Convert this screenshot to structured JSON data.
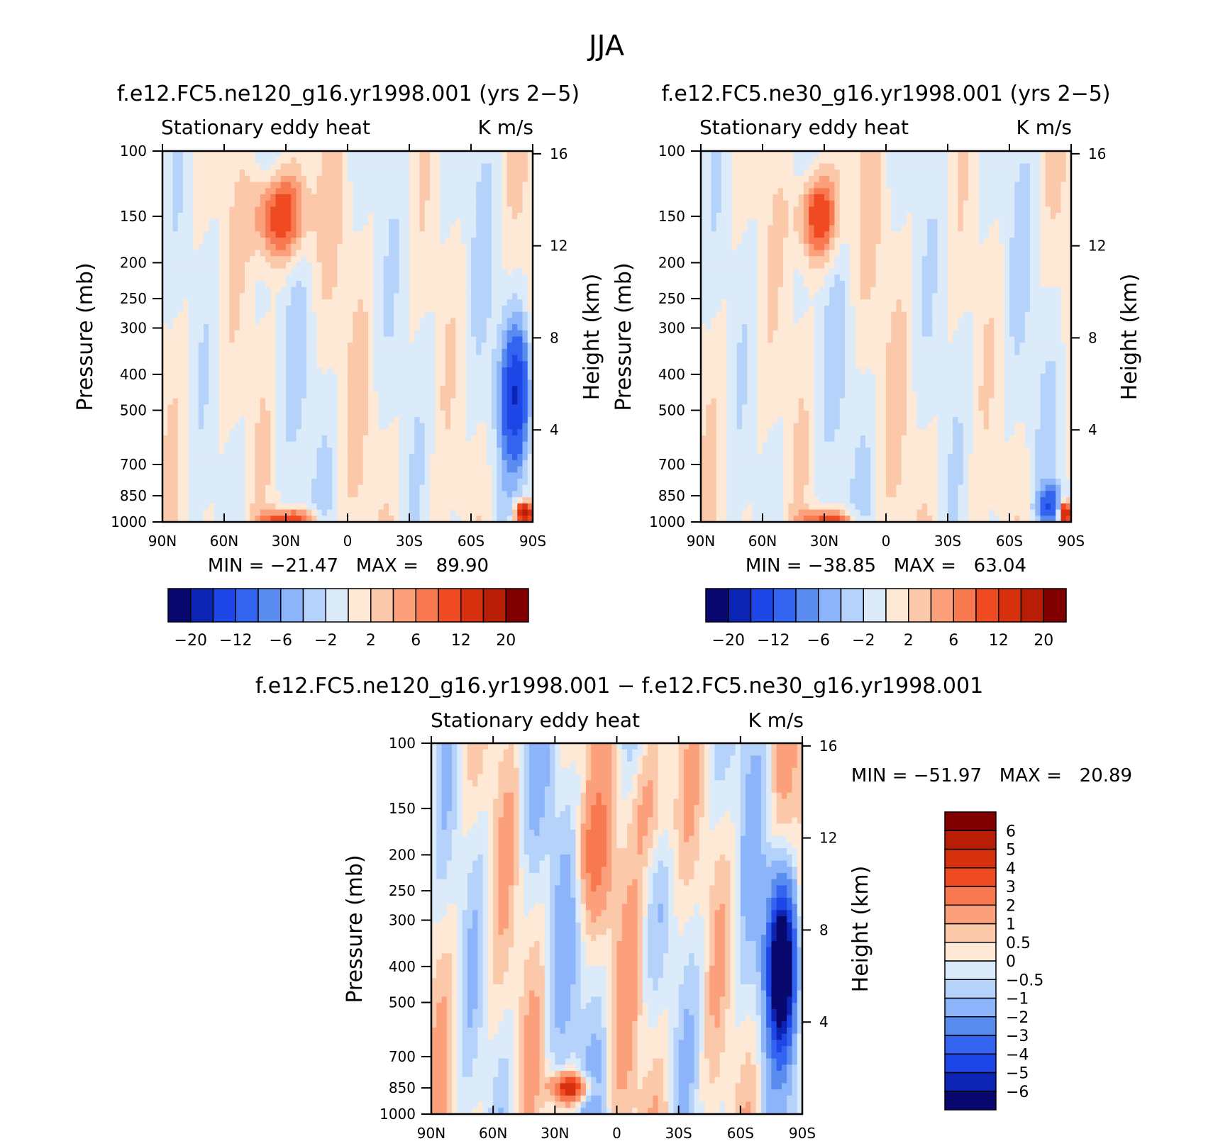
{
  "figure_title": "JJA",
  "colors": {
    "std_levels": [
      "#08086e",
      "#0c24b4",
      "#1e46e6",
      "#3264f0",
      "#5a8cf0",
      "#8cb4fa",
      "#b4d2fa",
      "#dcebfa",
      "#fee8d6",
      "#fcc8aa",
      "#fca07c",
      "#f87850",
      "#f04a22",
      "#d7300f",
      "#b81e06",
      "#800000"
    ],
    "diff_levels": [
      "#08086e",
      "#0c24b4",
      "#1e46e6",
      "#3264f0",
      "#5a8cf0",
      "#8cb4fa",
      "#b4d2fa",
      "#dcebfa",
      "#fee8d6",
      "#fcc8aa",
      "#fca07c",
      "#f87850",
      "#f04a22",
      "#d7300f",
      "#b81e06",
      "#800000"
    ]
  },
  "chart_data": [
    {
      "type": "heatmap",
      "title": "f.e12.FC5.ne120_g16.yr1998.001 (yrs 2−5)",
      "subtitle_left": "Stationary eddy heat",
      "subtitle_right": "K m/s",
      "xlabel": "",
      "ylabel": "Pressure (mb)",
      "ylabel_right": "Height (km)",
      "xticks": [
        {
          "v": 90,
          "label": "90N"
        },
        {
          "v": 60,
          "label": "60N"
        },
        {
          "v": 30,
          "label": "30N"
        },
        {
          "v": 0,
          "label": "0"
        },
        {
          "v": -30,
          "label": "30S"
        },
        {
          "v": -60,
          "label": "60S"
        },
        {
          "v": -90,
          "label": "90S"
        }
      ],
      "yticks": [
        {
          "v": 100,
          "label": "100"
        },
        {
          "v": 150,
          "label": "150"
        },
        {
          "v": 200,
          "label": "200"
        },
        {
          "v": 250,
          "label": "250"
        },
        {
          "v": 300,
          "label": "300"
        },
        {
          "v": 400,
          "label": "400"
        },
        {
          "v": 500,
          "label": "500"
        },
        {
          "v": 700,
          "label": "700"
        },
        {
          "v": 850,
          "label": "850"
        },
        {
          "v": 1000,
          "label": "1000"
        }
      ],
      "height_ticks": [
        {
          "v": 16,
          "label": "16"
        },
        {
          "v": 12,
          "label": "12"
        },
        {
          "v": 8,
          "label": "8"
        },
        {
          "v": 4,
          "label": "4"
        }
      ],
      "xlim": [
        90,
        -90
      ],
      "ylim": [
        1000,
        100
      ],
      "stats_text": "MIN = −21.47   MAX =   89.90",
      "colorbar_labels": [
        "−20",
        "−12",
        "−6",
        "−2",
        "2",
        "6",
        "12",
        "20"
      ],
      "features": [
        {
          "lat": 33,
          "p": 150,
          "value": 12,
          "wlat": 9,
          "wlogp": 0.2
        },
        {
          "lat": 28,
          "p": 1000,
          "value": 12,
          "wlat": 9,
          "wlogp": 0.05
        },
        {
          "lat": -82,
          "p": 450,
          "value": -14,
          "wlat": 5,
          "wlogp": 0.3
        },
        {
          "lat": -86,
          "p": 950,
          "value": 20,
          "wlat": 3,
          "wlogp": 0.05
        }
      ]
    },
    {
      "type": "heatmap",
      "title": "f.e12.FC5.ne30_g16.yr1998.001 (yrs 2−5)",
      "subtitle_left": "Stationary eddy heat",
      "subtitle_right": "K m/s",
      "xlabel": "",
      "ylabel": "Pressure (mb)",
      "ylabel_right": "Height (km)",
      "xticks": [
        {
          "v": 90,
          "label": "90N"
        },
        {
          "v": 60,
          "label": "60N"
        },
        {
          "v": 30,
          "label": "30N"
        },
        {
          "v": 0,
          "label": "0"
        },
        {
          "v": -30,
          "label": "30S"
        },
        {
          "v": -60,
          "label": "60S"
        },
        {
          "v": -90,
          "label": "90S"
        }
      ],
      "yticks": [
        {
          "v": 100,
          "label": "100"
        },
        {
          "v": 150,
          "label": "150"
        },
        {
          "v": 200,
          "label": "200"
        },
        {
          "v": 250,
          "label": "250"
        },
        {
          "v": 300,
          "label": "300"
        },
        {
          "v": 400,
          "label": "400"
        },
        {
          "v": 500,
          "label": "500"
        },
        {
          "v": 700,
          "label": "700"
        },
        {
          "v": 850,
          "label": "850"
        },
        {
          "v": 1000,
          "label": "1000"
        }
      ],
      "height_ticks": [
        {
          "v": 16,
          "label": "16"
        },
        {
          "v": 12,
          "label": "12"
        },
        {
          "v": 8,
          "label": "8"
        },
        {
          "v": 4,
          "label": "4"
        }
      ],
      "xlim": [
        90,
        -90
      ],
      "ylim": [
        1000,
        100
      ],
      "stats_text": "MIN = −38.85   MAX =   63.04",
      "colorbar_labels": [
        "−20",
        "−12",
        "−6",
        "−2",
        "2",
        "6",
        "12",
        "20"
      ],
      "features": [
        {
          "lat": 33,
          "p": 150,
          "value": 12,
          "wlat": 7,
          "wlogp": 0.2
        },
        {
          "lat": 28,
          "p": 1000,
          "value": 10,
          "wlat": 9,
          "wlogp": 0.05
        },
        {
          "lat": -80,
          "p": 900,
          "value": -10,
          "wlat": 4,
          "wlogp": 0.08
        },
        {
          "lat": -87,
          "p": 950,
          "value": 20,
          "wlat": 2,
          "wlogp": 0.05
        }
      ]
    },
    {
      "type": "heatmap",
      "title": "f.e12.FC5.ne120_g16.yr1998.001 − f.e12.FC5.ne30_g16.yr1998.001",
      "subtitle_left": "Stationary eddy heat",
      "subtitle_right": "K m/s",
      "xlabel": "",
      "ylabel": "Pressure (mb)",
      "ylabel_right": "Height (km)",
      "xticks": [
        {
          "v": 90,
          "label": "90N"
        },
        {
          "v": 60,
          "label": "60N"
        },
        {
          "v": 30,
          "label": "30N"
        },
        {
          "v": 0,
          "label": "0"
        },
        {
          "v": -30,
          "label": "30S"
        },
        {
          "v": -60,
          "label": "60S"
        },
        {
          "v": -90,
          "label": "90S"
        }
      ],
      "yticks": [
        {
          "v": 100,
          "label": "100"
        },
        {
          "v": 150,
          "label": "150"
        },
        {
          "v": 200,
          "label": "200"
        },
        {
          "v": 250,
          "label": "250"
        },
        {
          "v": 300,
          "label": "300"
        },
        {
          "v": 400,
          "label": "400"
        },
        {
          "v": 500,
          "label": "500"
        },
        {
          "v": 700,
          "label": "700"
        },
        {
          "v": 850,
          "label": "850"
        },
        {
          "v": 1000,
          "label": "1000"
        }
      ],
      "height_ticks": [
        {
          "v": 16,
          "label": "16"
        },
        {
          "v": 12,
          "label": "12"
        },
        {
          "v": 8,
          "label": "8"
        },
        {
          "v": 4,
          "label": "4"
        }
      ],
      "xlim": [
        90,
        -90
      ],
      "ylim": [
        1000,
        100
      ],
      "stats_text": "MIN = −51.97   MAX =   20.89",
      "colorbar_labels": [
        "6",
        "5",
        "4",
        "3",
        "2",
        "1",
        "0.5",
        "0",
        "−0.5",
        "−1",
        "−2",
        "−3",
        "−4",
        "−5",
        "−6"
      ],
      "features": [
        {
          "lat": -80,
          "p": 400,
          "value": -8,
          "wlat": 5,
          "wlogp": 0.35
        },
        {
          "lat": 23,
          "p": 850,
          "value": 5,
          "wlat": 6,
          "wlogp": 0.06
        },
        {
          "lat": 12,
          "p": 200,
          "value": 1.5,
          "wlat": 6,
          "wlogp": 0.25
        },
        {
          "lat": -18,
          "p": 150,
          "value": 1.5,
          "wlat": 8,
          "wlogp": 0.3
        }
      ]
    }
  ]
}
